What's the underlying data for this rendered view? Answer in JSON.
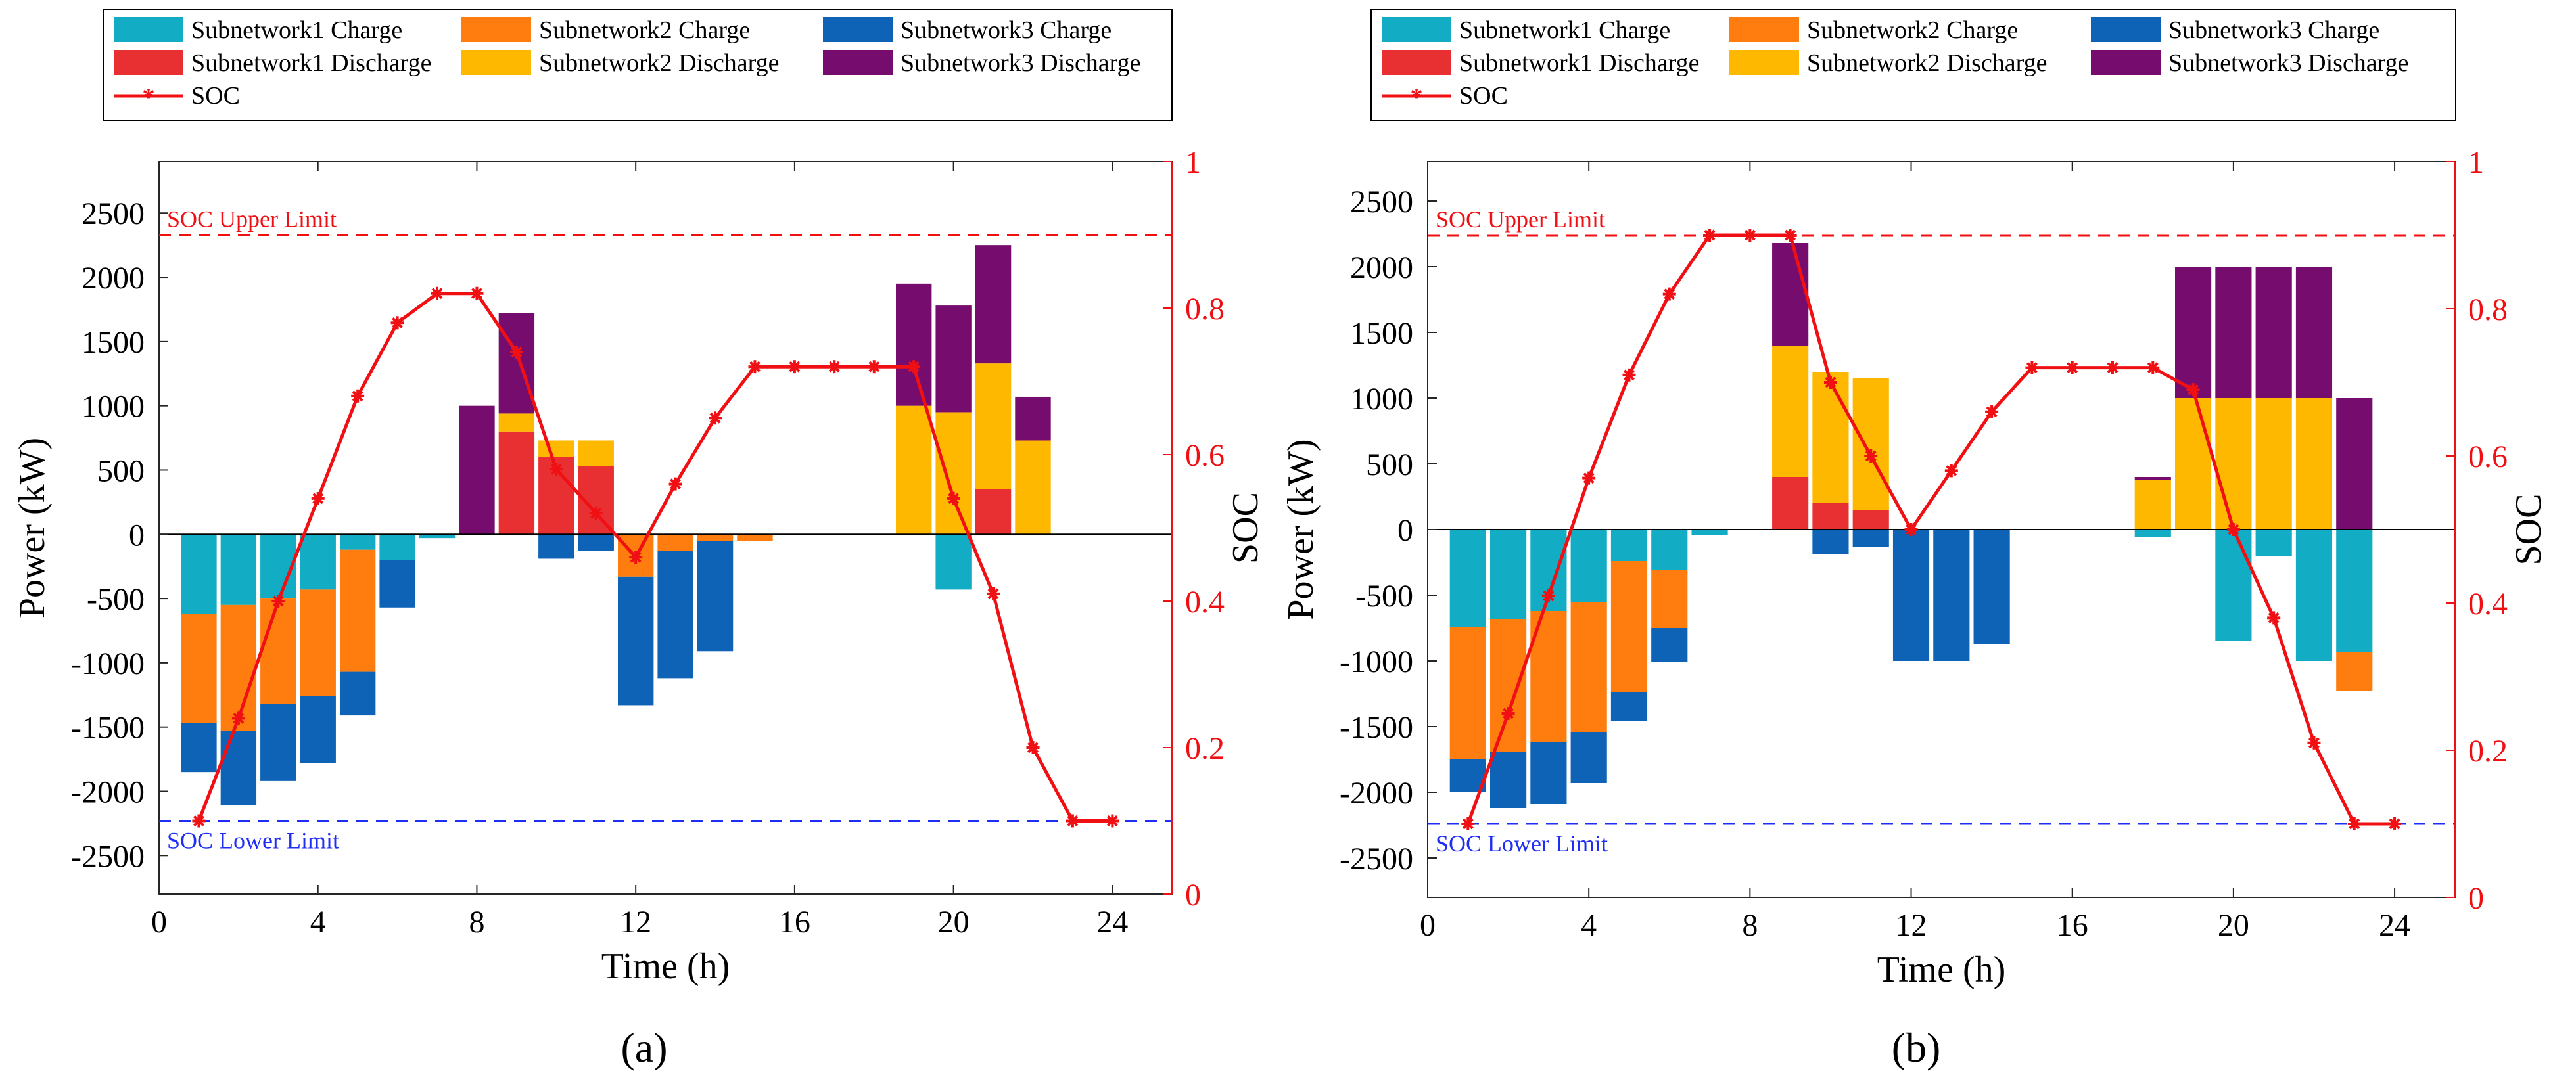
{
  "figure": {
    "panel_labels": [
      "(a)",
      "(b)"
    ]
  },
  "chart_data": [
    {
      "type": "bar",
      "panel": "(a)",
      "title": "",
      "xlabel": "Time (h)",
      "ylabel": "Power (kW)",
      "y2label": "SOC",
      "xlim": [
        0,
        25.5
      ],
      "ylim": [
        -2800,
        2900
      ],
      "y2lim": [
        0,
        1
      ],
      "xticks": [
        0,
        4,
        8,
        12,
        16,
        20,
        24
      ],
      "yticks": [
        2500,
        2000,
        1500,
        1000,
        500,
        0,
        -500,
        -1000,
        -1500,
        -2000,
        -2500
      ],
      "y2ticks": [
        0,
        0.2,
        0.4,
        0.6,
        0.8,
        1
      ],
      "legend": [
        "Subnetwork1 Charge",
        "Subnetwork2 Charge",
        "Subnetwork3 Charge",
        "Subnetwork1 Discharge",
        "Subnetwork2 Discharge",
        "Subnetwork3 Discharge",
        "SOC"
      ],
      "hours": [
        1,
        2,
        3,
        4,
        5,
        6,
        7,
        8,
        9,
        10,
        11,
        12,
        13,
        14,
        15,
        16,
        17,
        18,
        19,
        20,
        21,
        22,
        23,
        24
      ],
      "series": [
        {
          "name": "Subnetwork1 Charge",
          "color": "#12ACC4",
          "values": [
            -620,
            -550,
            -500,
            -430,
            -120,
            -200,
            -30,
            0,
            0,
            0,
            0,
            0,
            0,
            0,
            0,
            0,
            0,
            0,
            0,
            -430,
            0,
            0,
            0,
            0
          ]
        },
        {
          "name": "Subnetwork2 Charge",
          "color": "#FF7C0E",
          "values": [
            -850,
            -980,
            -820,
            -830,
            -950,
            0,
            0,
            0,
            0,
            0,
            0,
            -330,
            -130,
            -50,
            -50,
            0,
            0,
            0,
            0,
            0,
            0,
            0,
            0,
            0
          ]
        },
        {
          "name": "Subnetwork3 Charge",
          "color": "#0E63B6",
          "values": [
            -380,
            -580,
            -600,
            -520,
            -340,
            -370,
            0,
            0,
            0,
            -190,
            -130,
            -1000,
            -990,
            -860,
            0,
            0,
            0,
            0,
            0,
            0,
            0,
            0,
            0,
            0
          ]
        },
        {
          "name": "Subnetwork1 Discharge",
          "color": "#E83033",
          "values": [
            0,
            0,
            0,
            0,
            0,
            0,
            0,
            0,
            800,
            600,
            530,
            0,
            0,
            0,
            0,
            0,
            0,
            0,
            0,
            0,
            350,
            0,
            0,
            0
          ]
        },
        {
          "name": "Subnetwork2 Discharge",
          "color": "#FFB800",
          "values": [
            0,
            0,
            0,
            0,
            0,
            0,
            0,
            0,
            140,
            130,
            200,
            0,
            0,
            0,
            0,
            0,
            0,
            0,
            1000,
            950,
            980,
            730,
            0,
            0
          ]
        },
        {
          "name": "Subnetwork3 Discharge",
          "color": "#760C6E",
          "values": [
            0,
            0,
            0,
            0,
            0,
            0,
            0,
            1000,
            780,
            0,
            0,
            0,
            0,
            0,
            0,
            0,
            0,
            0,
            950,
            830,
            920,
            340,
            0,
            0
          ]
        }
      ],
      "soc": {
        "name": "SOC",
        "color": "#F01014",
        "values": [
          0.1,
          0.24,
          0.4,
          0.54,
          0.68,
          0.78,
          0.82,
          0.82,
          0.74,
          0.58,
          0.52,
          0.46,
          0.56,
          0.65,
          0.72,
          0.72,
          0.72,
          0.72,
          0.72,
          0.54,
          0.41,
          0.2,
          0.1,
          0.1
        ]
      },
      "limits": {
        "upper": {
          "label": "SOC Upper Limit",
          "soc": 0.9,
          "color": "#F01014"
        },
        "lower": {
          "label": "SOC Lower Limit",
          "soc": 0.1,
          "color": "#1F2EF5"
        }
      }
    },
    {
      "type": "bar",
      "panel": "(b)",
      "title": "",
      "xlabel": "Time (h)",
      "ylabel": "Power (kW)",
      "y2label": "SOC",
      "xlim": [
        0,
        25.5
      ],
      "ylim": [
        -2800,
        2800
      ],
      "y2lim": [
        0,
        1
      ],
      "xticks": [
        0,
        4,
        8,
        12,
        16,
        20,
        24
      ],
      "yticks": [
        2500,
        2000,
        1500,
        1000,
        500,
        0,
        -500,
        -1000,
        -1500,
        -2000,
        -2500
      ],
      "y2ticks": [
        0,
        0.2,
        0.4,
        0.6,
        0.8,
        1
      ],
      "legend": [
        "Subnetwork1 Charge",
        "Subnetwork2 Charge",
        "Subnetwork3 Charge",
        "Subnetwork1 Discharge",
        "Subnetwork2 Discharge",
        "Subnetwork3 Discharge",
        "SOC"
      ],
      "hours": [
        1,
        2,
        3,
        4,
        5,
        6,
        7,
        8,
        9,
        10,
        11,
        12,
        13,
        14,
        15,
        16,
        17,
        18,
        19,
        20,
        21,
        22,
        23,
        24
      ],
      "series": [
        {
          "name": "Subnetwork1 Charge",
          "color": "#12ACC4",
          "values": [
            -740,
            -680,
            -620,
            -550,
            -240,
            -310,
            -40,
            0,
            0,
            0,
            0,
            0,
            0,
            0,
            0,
            0,
            0,
            -60,
            0,
            -850,
            -200,
            -1000,
            -930,
            0
          ]
        },
        {
          "name": "Subnetwork2 Charge",
          "color": "#FF7C0E",
          "values": [
            -1010,
            -1010,
            -1000,
            -990,
            -1000,
            -440,
            0,
            0,
            0,
            0,
            0,
            0,
            0,
            0,
            0,
            0,
            0,
            0,
            0,
            0,
            0,
            0,
            -300,
            0
          ]
        },
        {
          "name": "Subnetwork3 Charge",
          "color": "#0E63B6",
          "values": [
            -250,
            -430,
            -470,
            -390,
            -220,
            -260,
            0,
            0,
            0,
            -190,
            -130,
            -1000,
            -1000,
            -870,
            0,
            0,
            0,
            0,
            0,
            0,
            0,
            0,
            0,
            0
          ]
        },
        {
          "name": "Subnetwork1 Discharge",
          "color": "#E83033",
          "values": [
            0,
            0,
            0,
            0,
            0,
            0,
            0,
            0,
            400,
            200,
            150,
            0,
            0,
            0,
            0,
            0,
            0,
            0,
            0,
            0,
            0,
            0,
            0,
            0
          ]
        },
        {
          "name": "Subnetwork2 Discharge",
          "color": "#FFB800",
          "values": [
            0,
            0,
            0,
            0,
            0,
            0,
            0,
            0,
            1000,
            1000,
            1000,
            0,
            0,
            0,
            0,
            0,
            0,
            380,
            1000,
            1000,
            1000,
            1000,
            0,
            0
          ]
        },
        {
          "name": "Subnetwork3 Discharge",
          "color": "#760C6E",
          "values": [
            0,
            0,
            0,
            0,
            0,
            0,
            0,
            0,
            780,
            0,
            0,
            0,
            0,
            0,
            0,
            0,
            0,
            20,
            1000,
            1000,
            1000,
            1000,
            1000,
            0
          ]
        }
      ],
      "soc": {
        "name": "SOC",
        "color": "#F01014",
        "values": [
          0.1,
          0.25,
          0.41,
          0.57,
          0.71,
          0.82,
          0.9,
          0.9,
          0.9,
          0.7,
          0.6,
          0.5,
          0.58,
          0.66,
          0.72,
          0.72,
          0.72,
          0.72,
          0.69,
          0.5,
          0.38,
          0.21,
          0.1,
          0.1
        ]
      },
      "limits": {
        "upper": {
          "label": "SOC Upper Limit",
          "soc": 0.9,
          "color": "#F01014"
        },
        "lower": {
          "label": "SOC Lower Limit",
          "soc": 0.1,
          "color": "#1F2EF5"
        }
      }
    }
  ]
}
